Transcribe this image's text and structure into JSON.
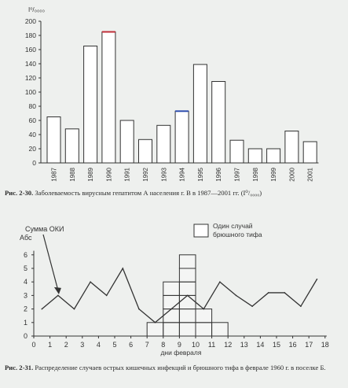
{
  "chart_data": [
    {
      "type": "bar",
      "ylabel": "I⁰/₀₀₀₀",
      "ylim": [
        0,
        200
      ],
      "yticks": [
        "0",
        "20",
        "40",
        "60",
        "80",
        "100",
        "120",
        "140",
        "160",
        "180",
        "200"
      ],
      "categories": [
        "1987",
        "1988",
        "1989",
        "1990",
        "1991",
        "1992",
        "1993",
        "1994",
        "1995",
        "1996",
        "1997",
        "1998",
        "1999",
        "2000",
        "2001"
      ],
      "values": [
        65,
        48,
        165,
        185,
        60,
        33,
        53,
        73,
        139,
        115,
        32,
        20,
        20,
        45,
        30
      ],
      "highlight_colors": {
        "1990": "#c0303a",
        "1994": "#3050b0"
      },
      "bar_color": "#ffffff",
      "caption_label": "Рис. 2-30.",
      "caption_text": "Заболеваемость вирусным гепатитом А населения г. В в 1987—2001 гг. (I⁰/₀₀₀₀)"
    },
    {
      "type": "line",
      "ylabel": "Абс",
      "xlabel": "дни февраля",
      "ylim": [
        0,
        6
      ],
      "xlim": [
        0,
        18
      ],
      "yticks": [
        "0",
        "1",
        "2",
        "3",
        "4",
        "5",
        "6"
      ],
      "xticks": [
        "0",
        "1",
        "2",
        "3",
        "4",
        "5",
        "6",
        "7",
        "8",
        "9",
        "10",
        "11",
        "12",
        "13",
        "14",
        "15",
        "16",
        "17",
        "18"
      ],
      "series": [
        {
          "name": "Сумма ОКИ",
          "x": [
            0.5,
            1.5,
            2.5,
            3.5,
            4.5,
            5.5,
            6.5,
            7.5,
            8.5,
            9.5,
            10.5,
            11.5,
            12.5,
            13.5,
            14.5,
            15.5,
            16.5,
            17.5
          ],
          "y": [
            2,
            3,
            2,
            4,
            3,
            5,
            2,
            1,
            2,
            3,
            2,
            4,
            3,
            2.2,
            3.2,
            3.2,
            2.2,
            4.2
          ]
        }
      ],
      "typhoid_cases": {
        "name": "Один случай брюшного тифа",
        "columns": [
          {
            "day": 7.5,
            "count": 1
          },
          {
            "day": 8.5,
            "count": 4
          },
          {
            "day": 9.5,
            "count": 6
          },
          {
            "day": 10.5,
            "count": 2
          },
          {
            "day": 11.5,
            "count": 1
          }
        ]
      },
      "annotation": "Сумма ОКИ",
      "legend_label": "Один случай брюшного тифа",
      "caption_label": "Рис. 2-31.",
      "caption_text": "Распределение случаев острых кишечных инфекций и брюшного тифа в феврале 1960 г. в поселке Б."
    }
  ]
}
